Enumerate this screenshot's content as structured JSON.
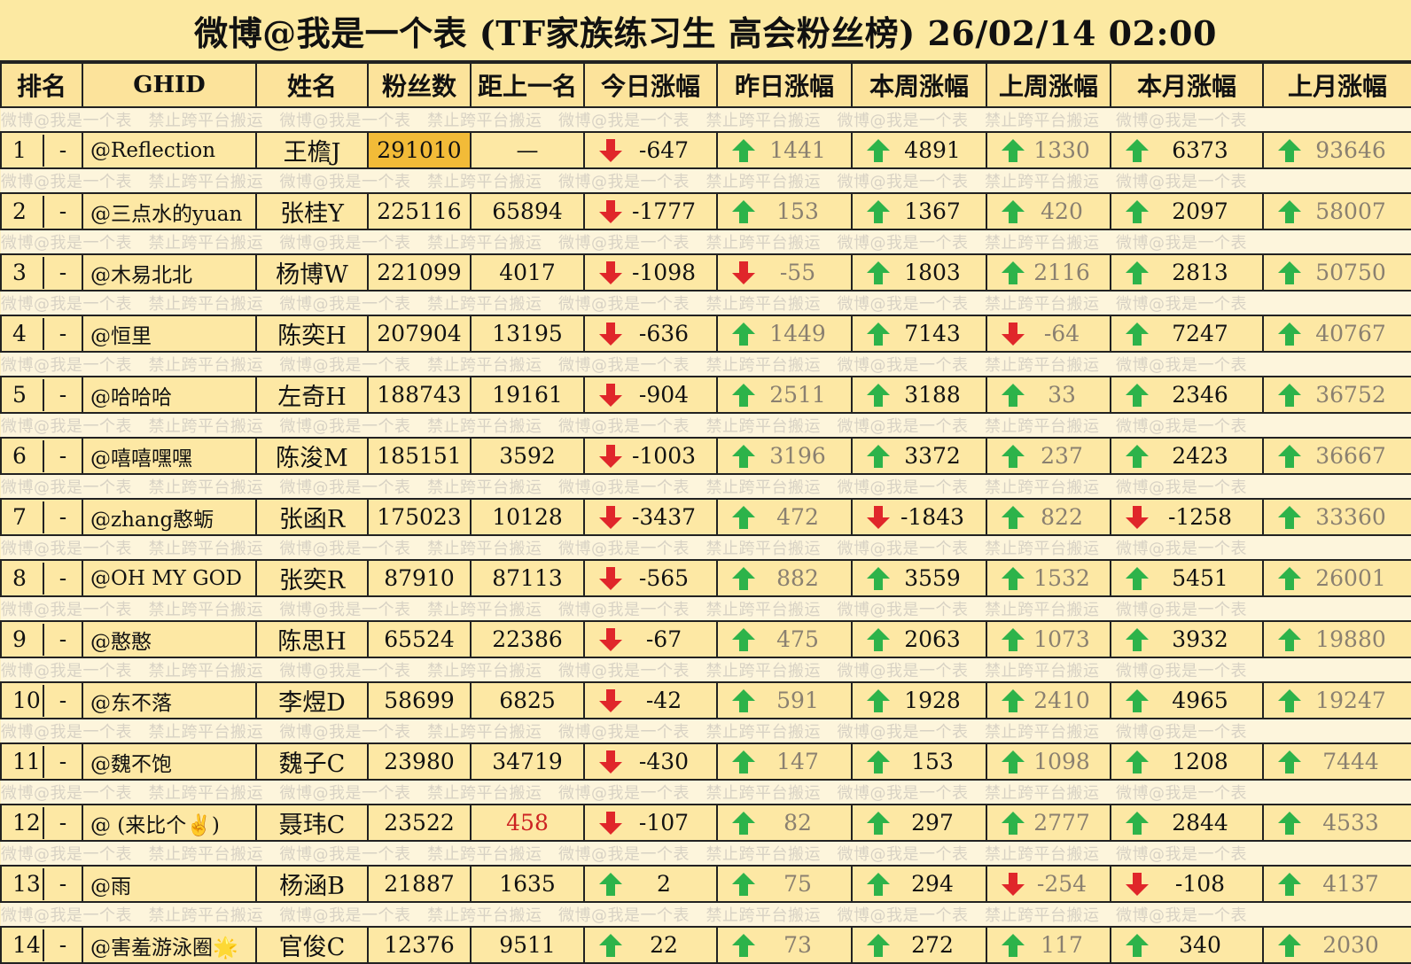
{
  "title": "微博@我是一个表 (TF家族练习生 高会粉丝榜)  26/02/14 02:00",
  "watermark": "微博@我是一个表　禁止跨平台搬运　微博@我是一个表　禁止跨平台搬运　微博@我是一个表　禁止跨平台搬运　微博@我是一个表　禁止跨平台搬运　微博@我是一个表",
  "headers": [
    "排名",
    "GHID",
    "姓名",
    "粉丝数",
    "距上一名",
    "今日涨幅",
    "昨日涨幅",
    "本周涨幅",
    "上周涨幅",
    "本月涨幅",
    "上月涨幅"
  ],
  "colors": {
    "up": "#2db34a",
    "down": "#e0262a",
    "highlight": "#f2bb38",
    "red_text": "#cc2222"
  },
  "rows": [
    {
      "rank": "1",
      "change": "-",
      "ghid": "@Reflection",
      "name": "王檐J",
      "fans": "291010",
      "gap": "—",
      "today": {
        "dir": "down",
        "v": "-647"
      },
      "yesterday": {
        "dir": "up",
        "v": "1441"
      },
      "week": {
        "dir": "up",
        "v": "4891"
      },
      "lastweek": {
        "dir": "up",
        "v": "1330"
      },
      "month": {
        "dir": "up",
        "v": "6373"
      },
      "lastmonth": {
        "dir": "up",
        "v": "93646"
      }
    },
    {
      "rank": "2",
      "change": "-",
      "ghid": "@三点水的yuan",
      "name": "张桂Y",
      "fans": "225116",
      "gap": "65894",
      "today": {
        "dir": "down",
        "v": "-1777"
      },
      "yesterday": {
        "dir": "up",
        "v": "153"
      },
      "week": {
        "dir": "up",
        "v": "1367"
      },
      "lastweek": {
        "dir": "up",
        "v": "420"
      },
      "month": {
        "dir": "up",
        "v": "2097"
      },
      "lastmonth": {
        "dir": "up",
        "v": "58007"
      }
    },
    {
      "rank": "3",
      "change": "-",
      "ghid": "@木易北北",
      "name": "杨博W",
      "fans": "221099",
      "gap": "4017",
      "today": {
        "dir": "down",
        "v": "-1098"
      },
      "yesterday": {
        "dir": "down",
        "v": "-55"
      },
      "week": {
        "dir": "up",
        "v": "1803"
      },
      "lastweek": {
        "dir": "up",
        "v": "2116"
      },
      "month": {
        "dir": "up",
        "v": "2813"
      },
      "lastmonth": {
        "dir": "up",
        "v": "50750"
      }
    },
    {
      "rank": "4",
      "change": "-",
      "ghid": "@恒里",
      "name": "陈奕H",
      "fans": "207904",
      "gap": "13195",
      "today": {
        "dir": "down",
        "v": "-636"
      },
      "yesterday": {
        "dir": "up",
        "v": "1449"
      },
      "week": {
        "dir": "up",
        "v": "7143"
      },
      "lastweek": {
        "dir": "down",
        "v": "-64"
      },
      "month": {
        "dir": "up",
        "v": "7247"
      },
      "lastmonth": {
        "dir": "up",
        "v": "40767"
      }
    },
    {
      "rank": "5",
      "change": "-",
      "ghid": "@哈哈哈",
      "name": "左奇H",
      "fans": "188743",
      "gap": "19161",
      "today": {
        "dir": "down",
        "v": "-904"
      },
      "yesterday": {
        "dir": "up",
        "v": "2511"
      },
      "week": {
        "dir": "up",
        "v": "3188"
      },
      "lastweek": {
        "dir": "up",
        "v": "33"
      },
      "month": {
        "dir": "up",
        "v": "2346"
      },
      "lastmonth": {
        "dir": "up",
        "v": "36752"
      }
    },
    {
      "rank": "6",
      "change": "-",
      "ghid": "@嘻嘻嘿嘿",
      "name": "陈浚M",
      "fans": "185151",
      "gap": "3592",
      "today": {
        "dir": "down",
        "v": "-1003"
      },
      "yesterday": {
        "dir": "up",
        "v": "3196"
      },
      "week": {
        "dir": "up",
        "v": "3372"
      },
      "lastweek": {
        "dir": "up",
        "v": "237"
      },
      "month": {
        "dir": "up",
        "v": "2423"
      },
      "lastmonth": {
        "dir": "up",
        "v": "36667"
      }
    },
    {
      "rank": "7",
      "change": "-",
      "ghid": "@zhang憨蛎",
      "name": "张函R",
      "fans": "175023",
      "gap": "10128",
      "today": {
        "dir": "down",
        "v": "-3437"
      },
      "yesterday": {
        "dir": "up",
        "v": "472"
      },
      "week": {
        "dir": "down",
        "v": "-1843"
      },
      "lastweek": {
        "dir": "up",
        "v": "822"
      },
      "month": {
        "dir": "down",
        "v": "-1258"
      },
      "lastmonth": {
        "dir": "up",
        "v": "33360"
      }
    },
    {
      "rank": "8",
      "change": "-",
      "ghid": "@OH MY GOD",
      "name": "张奕R",
      "fans": "87910",
      "gap": "87113",
      "today": {
        "dir": "down",
        "v": "-565"
      },
      "yesterday": {
        "dir": "up",
        "v": "882"
      },
      "week": {
        "dir": "up",
        "v": "3559"
      },
      "lastweek": {
        "dir": "up",
        "v": "1532"
      },
      "month": {
        "dir": "up",
        "v": "5451"
      },
      "lastmonth": {
        "dir": "up",
        "v": "26001"
      }
    },
    {
      "rank": "9",
      "change": "-",
      "ghid": "@憨憨",
      "name": "陈思H",
      "fans": "65524",
      "gap": "22386",
      "today": {
        "dir": "down",
        "v": "-67"
      },
      "yesterday": {
        "dir": "up",
        "v": "475"
      },
      "week": {
        "dir": "up",
        "v": "2063"
      },
      "lastweek": {
        "dir": "up",
        "v": "1073"
      },
      "month": {
        "dir": "up",
        "v": "3932"
      },
      "lastmonth": {
        "dir": "up",
        "v": "19880"
      }
    },
    {
      "rank": "10",
      "change": "-",
      "ghid": "@东不落",
      "name": "李煜D",
      "fans": "58699",
      "gap": "6825",
      "today": {
        "dir": "down",
        "v": "-42"
      },
      "yesterday": {
        "dir": "up",
        "v": "591"
      },
      "week": {
        "dir": "up",
        "v": "1928"
      },
      "lastweek": {
        "dir": "up",
        "v": "2410"
      },
      "month": {
        "dir": "up",
        "v": "4965"
      },
      "lastmonth": {
        "dir": "up",
        "v": "19247"
      }
    },
    {
      "rank": "11",
      "change": "-",
      "ghid": "@魏不饱",
      "name": "魏子C",
      "fans": "23980",
      "gap": "34719",
      "today": {
        "dir": "down",
        "v": "-430"
      },
      "yesterday": {
        "dir": "up",
        "v": "147"
      },
      "week": {
        "dir": "up",
        "v": "153"
      },
      "lastweek": {
        "dir": "up",
        "v": "1098"
      },
      "month": {
        "dir": "up",
        "v": "1208"
      },
      "lastmonth": {
        "dir": "up",
        "v": "7444"
      }
    },
    {
      "rank": "12",
      "change": "-",
      "ghid": "@ (来比个✌)",
      "name": "聂玮C",
      "fans": "23522",
      "gap": "458",
      "today": {
        "dir": "down",
        "v": "-107"
      },
      "yesterday": {
        "dir": "up",
        "v": "82"
      },
      "week": {
        "dir": "up",
        "v": "297"
      },
      "lastweek": {
        "dir": "up",
        "v": "2777"
      },
      "month": {
        "dir": "up",
        "v": "2844"
      },
      "lastmonth": {
        "dir": "up",
        "v": "4533"
      }
    },
    {
      "rank": "13",
      "change": "-",
      "ghid": "@雨",
      "name": "杨涵B",
      "fans": "21887",
      "gap": "1635",
      "today": {
        "dir": "up",
        "v": "2"
      },
      "yesterday": {
        "dir": "up",
        "v": "75"
      },
      "week": {
        "dir": "up",
        "v": "294"
      },
      "lastweek": {
        "dir": "down",
        "v": "-254"
      },
      "month": {
        "dir": "down",
        "v": "-108"
      },
      "lastmonth": {
        "dir": "up",
        "v": "4137"
      }
    },
    {
      "rank": "14",
      "change": "-",
      "ghid": "@害羞游泳圈🌟",
      "name": "官俊C",
      "fans": "12376",
      "gap": "9511",
      "today": {
        "dir": "up",
        "v": "22"
      },
      "yesterday": {
        "dir": "up",
        "v": "73"
      },
      "week": {
        "dir": "up",
        "v": "272"
      },
      "lastweek": {
        "dir": "up",
        "v": "117"
      },
      "month": {
        "dir": "up",
        "v": "340"
      },
      "lastmonth": {
        "dir": "up",
        "v": "2030"
      }
    }
  ]
}
